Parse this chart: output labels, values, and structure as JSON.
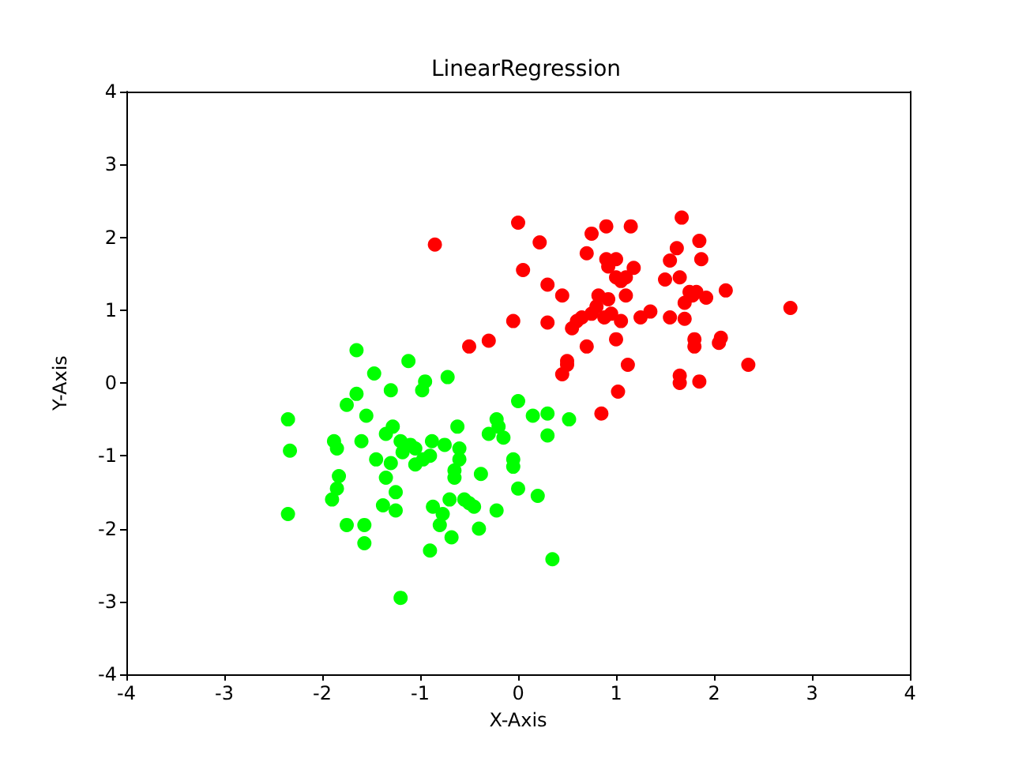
{
  "chart_data": {
    "type": "scatter",
    "title": "LinearRegression",
    "xlabel": "X-Axis",
    "ylabel": "Y-Axis",
    "xlim": [
      -4,
      4
    ],
    "ylim": [
      -4,
      4
    ],
    "xticks": [
      -4,
      -3,
      -2,
      -1,
      0,
      1,
      2,
      3,
      4
    ],
    "yticks": [
      -4,
      -3,
      -2,
      -1,
      0,
      1,
      2,
      3,
      4
    ],
    "grid": false,
    "marker": "circle",
    "series": [
      {
        "color": "#00ff00",
        "x": [
          -2.35,
          -2.33,
          -2.35,
          -1.88,
          -1.85,
          -1.83,
          -1.85,
          -1.9,
          -1.75,
          -1.65,
          -1.75,
          -1.65,
          -1.6,
          -1.55,
          -1.57,
          -1.57,
          -1.47,
          -1.45,
          -1.35,
          -1.35,
          -1.3,
          -1.28,
          -1.3,
          -1.25,
          -1.25,
          -1.38,
          -1.2,
          -1.18,
          -1.2,
          -1.12,
          -1.1,
          -1.05,
          -1.05,
          -0.97,
          -0.98,
          -0.95,
          -0.9,
          -0.88,
          -0.87,
          -0.9,
          -0.8,
          -0.77,
          -0.72,
          -0.75,
          -0.7,
          -0.68,
          -0.65,
          -0.65,
          -0.62,
          -0.6,
          -0.6,
          -0.55,
          -0.5,
          -0.45,
          -0.4,
          -0.38,
          -0.3,
          -0.22,
          -0.2,
          -0.22,
          -0.15,
          -0.05,
          -0.05,
          0.0,
          0.0,
          0.15,
          0.2,
          0.3,
          0.3,
          0.35,
          0.52
        ],
        "values": [
          -0.5,
          -0.93,
          -1.8,
          -0.8,
          -0.9,
          -1.28,
          -1.45,
          -1.6,
          -1.95,
          0.45,
          -0.3,
          -0.15,
          -0.8,
          -0.45,
          -1.95,
          -2.2,
          0.13,
          -1.05,
          -0.7,
          -1.3,
          -0.1,
          -0.6,
          -1.1,
          -1.5,
          -1.75,
          -1.68,
          -0.8,
          -0.95,
          -2.95,
          0.3,
          -0.85,
          -1.12,
          -0.9,
          -1.05,
          -0.1,
          0.02,
          -1.0,
          -0.8,
          -1.7,
          -2.3,
          -1.95,
          -1.8,
          0.08,
          -0.85,
          -1.6,
          -2.12,
          -1.2,
          -1.3,
          -0.6,
          -0.9,
          -1.05,
          -1.6,
          -1.65,
          -1.7,
          -2.0,
          -1.25,
          -0.7,
          -0.5,
          -0.6,
          -1.75,
          -0.75,
          -1.05,
          -1.15,
          -0.25,
          -1.45,
          -0.45,
          -1.55,
          -0.42,
          -0.72,
          -2.42,
          -0.5
        ]
      },
      {
        "color": "#ff0000",
        "x": [
          -0.85,
          -0.5,
          -0.3,
          -0.05,
          0.0,
          0.05,
          0.22,
          0.3,
          0.3,
          0.45,
          0.45,
          0.5,
          0.5,
          0.55,
          0.6,
          0.65,
          0.7,
          0.7,
          0.75,
          0.75,
          0.8,
          0.82,
          0.85,
          0.88,
          0.9,
          0.9,
          0.92,
          0.92,
          0.95,
          1.0,
          1.0,
          1.0,
          1.02,
          1.05,
          1.05,
          1.1,
          1.1,
          1.15,
          1.12,
          1.18,
          1.25,
          1.35,
          1.5,
          1.55,
          1.55,
          1.62,
          1.65,
          1.65,
          1.65,
          1.67,
          1.7,
          1.7,
          1.75,
          1.78,
          1.8,
          1.8,
          1.82,
          1.85,
          1.85,
          1.87,
          1.92,
          2.05,
          2.07,
          2.12,
          2.35,
          2.78
        ],
        "values": [
          1.9,
          0.5,
          0.58,
          0.85,
          2.2,
          1.55,
          1.93,
          1.35,
          0.83,
          1.2,
          0.12,
          0.3,
          0.25,
          0.75,
          0.85,
          0.9,
          1.78,
          0.5,
          2.05,
          0.95,
          1.05,
          1.2,
          -0.42,
          0.9,
          2.15,
          1.7,
          1.6,
          1.15,
          0.95,
          1.7,
          1.45,
          0.6,
          -0.12,
          1.4,
          0.85,
          1.45,
          1.2,
          2.15,
          0.25,
          1.58,
          0.9,
          0.98,
          1.42,
          1.68,
          0.9,
          1.85,
          0.1,
          0.0,
          1.45,
          2.27,
          1.1,
          0.88,
          1.25,
          1.2,
          0.6,
          0.5,
          1.25,
          0.02,
          1.95,
          1.7,
          1.17,
          0.55,
          0.62,
          1.27,
          0.25,
          1.03
        ]
      }
    ]
  }
}
